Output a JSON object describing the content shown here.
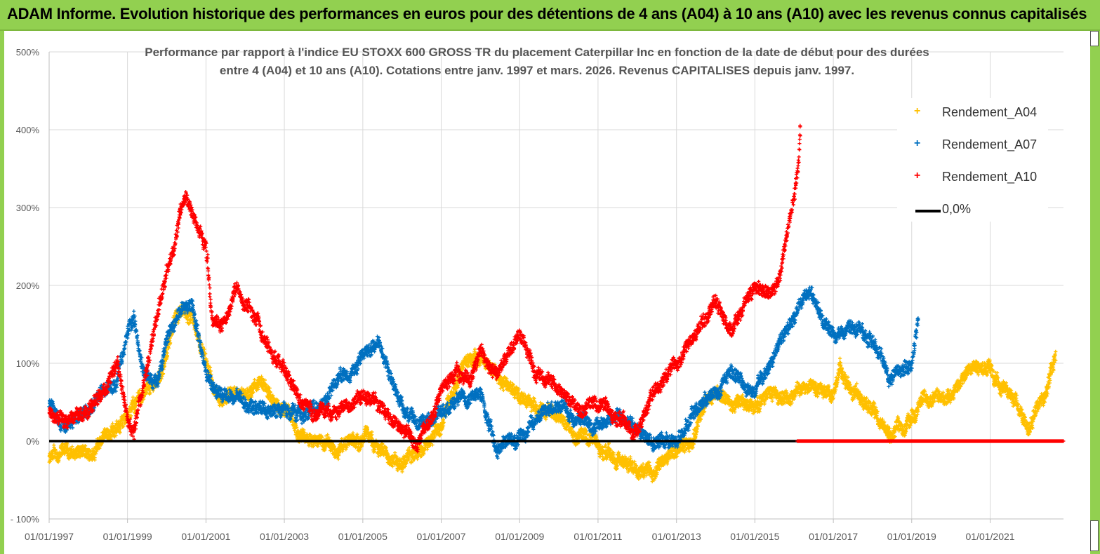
{
  "banner": {
    "title": "ADAM Informe. Evolution historique des performances en euros pour des détentions de 4 ans (A04) à 10 ans (A10) avec les revenus connus capitalisés"
  },
  "colors": {
    "banner": "#92d050",
    "A04": "#ffc000",
    "A07": "#0070c0",
    "A10": "#ff0000",
    "zero_line": "#000000"
  },
  "chart_data": {
    "type": "scatter",
    "title_line1": "Performance par rapport à l'indice EU STOXX 600 GROSS TR  du placement Caterpillar Inc en fonction de la date de début pour des durées",
    "title_line2": "entre 4 (A04) et 10 ans (A10). Cotations entre janv. 1997 et mars. 2026. Revenus CAPITALISES depuis janv. 1997.",
    "xlabel": "",
    "ylabel": "",
    "x_range": [
      "1997-01-01",
      "2022-11-15"
    ],
    "ylim": [
      -100,
      500
    ],
    "y_ticks": [
      -100,
      0,
      100,
      200,
      300,
      400,
      500
    ],
    "y_tick_labels": [
      "- 100%",
      "0%",
      "100%",
      "200%",
      "300%",
      "400%",
      "500%"
    ],
    "x_ticks": [
      "1997-01-01",
      "1999-01-01",
      "2001-01-01",
      "2003-01-01",
      "2005-01-01",
      "2007-01-01",
      "2009-01-01",
      "2011-01-01",
      "2013-01-01",
      "2015-01-01",
      "2017-01-01",
      "2019-01-01",
      "2021-01-01"
    ],
    "x_tick_labels": [
      "01/01/1997",
      "01/01/1999",
      "01/01/2001",
      "01/01/2003",
      "01/01/2005",
      "01/01/2007",
      "01/01/2009",
      "01/01/2011",
      "01/01/2013",
      "01/01/2015",
      "01/01/2017",
      "01/01/2019",
      "01/01/2021"
    ],
    "grid": true,
    "legend_position": "right",
    "series": [
      {
        "name": "Rendement_A04",
        "marker": "+",
        "x": [
          "1997-01-01",
          "1997-06-01",
          "1998-01-01",
          "1998-06-01",
          "1998-10-01",
          "1999-01-01",
          "1999-06-01",
          "1999-10-01",
          "2000-01-01",
          "2000-03-01",
          "2000-06-01",
          "2000-09-01",
          "2001-01-01",
          "2001-03-01",
          "2001-06-01",
          "2002-01-01",
          "2002-06-01",
          "2003-01-01",
          "2003-06-01",
          "2004-01-01",
          "2004-06-01",
          "2005-01-01",
          "2005-06-01",
          "2006-01-01",
          "2006-06-01",
          "2007-01-01",
          "2007-06-01",
          "2007-09-01",
          "2008-01-01",
          "2008-06-01",
          "2009-01-01",
          "2009-06-01",
          "2010-01-01",
          "2010-06-01",
          "2011-01-01",
          "2011-06-01",
          "2012-01-01",
          "2012-06-01",
          "2013-01-01",
          "2013-06-01",
          "2013-09-01",
          "2014-01-01",
          "2014-06-01",
          "2015-01-01",
          "2015-06-01",
          "2016-01-01",
          "2016-06-01",
          "2017-01-01",
          "2017-03-01",
          "2017-06-01",
          "2018-01-01",
          "2018-06-01",
          "2019-01-01",
          "2019-06-01",
          "2020-01-01",
          "2020-06-01",
          "2021-01-01",
          "2021-03-01",
          "2021-06-01",
          "2022-01-01",
          "2022-06-01",
          "2022-09-01"
        ],
        "y": [
          -25,
          -15,
          -18,
          5,
          20,
          35,
          60,
          75,
          110,
          150,
          160,
          150,
          100,
          75,
          55,
          60,
          75,
          40,
          10,
          0,
          -5,
          5,
          -10,
          -20,
          -10,
          20,
          80,
          100,
          110,
          90,
          60,
          45,
          35,
          15,
          0,
          -20,
          -40,
          -40,
          -10,
          0,
          40,
          65,
          50,
          40,
          60,
          65,
          75,
          55,
          90,
          65,
          45,
          10,
          30,
          60,
          60,
          85,
          90,
          80,
          65,
          20,
          60,
          110
        ],
        "count": 6500
      },
      {
        "name": "Rendement_A07",
        "marker": "+",
        "x": [
          "1997-01-01",
          "1997-06-01",
          "1998-01-01",
          "1998-06-01",
          "1998-10-01",
          "1999-01-01",
          "1999-03-01",
          "1999-06-01",
          "1999-10-01",
          "2000-01-01",
          "2000-06-01",
          "2000-09-01",
          "2001-01-01",
          "2001-03-01",
          "2001-06-01",
          "2002-01-01",
          "2002-06-01",
          "2003-01-01",
          "2003-06-01",
          "2004-01-01",
          "2004-06-01",
          "2005-01-01",
          "2005-06-01",
          "2006-01-01",
          "2006-06-01",
          "2007-01-01",
          "2007-06-01",
          "2008-01-01",
          "2008-06-01",
          "2009-01-01",
          "2009-06-01",
          "2010-01-01",
          "2010-06-01",
          "2011-01-01",
          "2011-06-01",
          "2012-01-01",
          "2012-06-01",
          "2013-01-01",
          "2013-06-01",
          "2014-01-01",
          "2014-06-01",
          "2015-01-01",
          "2015-06-01",
          "2015-09-01",
          "2016-01-01",
          "2016-06-01",
          "2016-09-01",
          "2017-01-01",
          "2017-06-01",
          "2018-01-01",
          "2018-06-01",
          "2019-01-01",
          "2019-03-01"
        ],
        "y": [
          50,
          20,
          40,
          60,
          80,
          145,
          160,
          85,
          70,
          130,
          175,
          170,
          95,
          70,
          55,
          50,
          35,
          40,
          30,
          55,
          90,
          100,
          125,
          50,
          15,
          40,
          55,
          60,
          0,
          5,
          30,
          50,
          30,
          20,
          25,
          15,
          -5,
          5,
          30,
          60,
          85,
          60,
          110,
          130,
          150,
          200,
          160,
          130,
          160,
          130,
          90,
          100,
          160
        ],
        "count": 4600
      },
      {
        "name": "Rendement_A10",
        "marker": "+",
        "x": [
          "1997-01-01",
          "1997-06-01",
          "1998-01-01",
          "1998-06-01",
          "1998-10-01",
          "1999-01-01",
          "1999-03-01",
          "1999-06-01",
          "2000-01-01",
          "2000-04-01",
          "2000-07-01",
          "2000-10-01",
          "2001-01-01",
          "2001-03-01",
          "2001-06-01",
          "2001-10-01",
          "2002-01-01",
          "2002-06-01",
          "2003-01-01",
          "2003-06-01",
          "2004-01-01",
          "2004-06-01",
          "2005-01-01",
          "2005-06-01",
          "2006-01-01",
          "2006-06-01",
          "2007-01-01",
          "2007-06-01",
          "2007-10-01",
          "2008-01-01",
          "2008-06-01",
          "2009-01-01",
          "2009-06-01",
          "2010-01-01",
          "2010-06-01",
          "2011-01-01",
          "2011-06-01",
          "2012-01-01",
          "2012-06-01",
          "2013-01-01",
          "2013-06-01",
          "2014-01-01",
          "2014-06-01",
          "2015-01-01",
          "2015-06-01",
          "2015-09-01",
          "2016-01-01",
          "2016-02-15",
          "2016-03-01"
        ],
        "y": [
          40,
          25,
          35,
          60,
          100,
          20,
          15,
          80,
          220,
          270,
          310,
          280,
          250,
          160,
          150,
          200,
          180,
          140,
          90,
          50,
          30,
          40,
          70,
          50,
          20,
          -5,
          60,
          90,
          80,
          120,
          90,
          140,
          90,
          70,
          50,
          50,
          40,
          10,
          60,
          100,
          130,
          180,
          140,
          200,
          190,
          220,
          310,
          360,
          400
        ],
        "count": 3900
      },
      {
        "name": "0,0%",
        "type": "line",
        "x": [
          "1997-01-01",
          "2016-02-01"
        ],
        "y": [
          0,
          0
        ]
      },
      {
        "name": "",
        "type": "flat",
        "color": "#ff0000",
        "x": [
          "2016-02-01",
          "2022-11-15"
        ],
        "y": [
          0,
          0
        ]
      }
    ]
  }
}
